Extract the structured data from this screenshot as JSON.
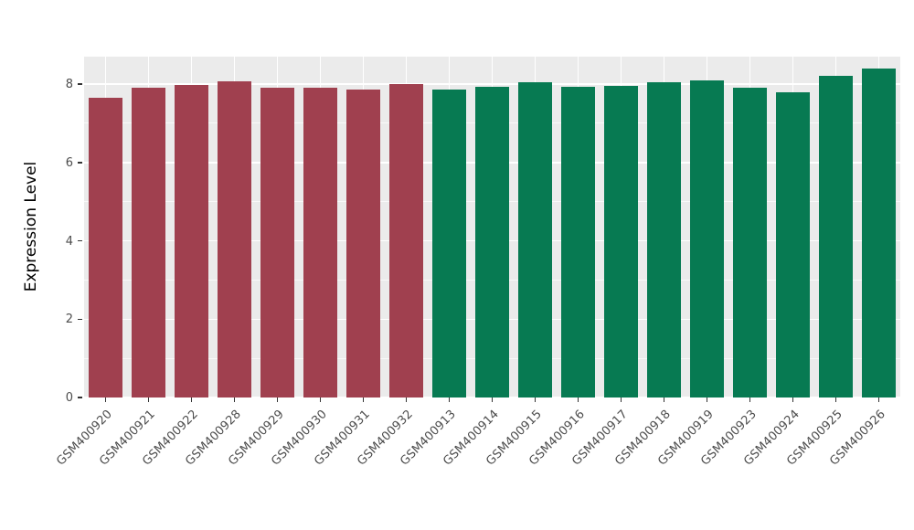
{
  "chart_data": {
    "type": "bar",
    "title": "",
    "xlabel": "",
    "ylabel": "Expression Level",
    "ylim": [
      0,
      8.7
    ],
    "yticks": [
      0,
      2,
      4,
      6,
      8
    ],
    "yticks_minor": [
      1,
      3,
      5,
      7
    ],
    "grid": "on",
    "legend": "none",
    "categories": [
      "GSM400920",
      "GSM400921",
      "GSM400922",
      "GSM400928",
      "GSM400929",
      "GSM400930",
      "GSM400931",
      "GSM400932",
      "GSM400913",
      "GSM400914",
      "GSM400915",
      "GSM400916",
      "GSM400917",
      "GSM400918",
      "GSM400919",
      "GSM400923",
      "GSM400924",
      "GSM400925",
      "GSM400926"
    ],
    "values": [
      7.65,
      7.9,
      7.97,
      8.07,
      7.9,
      7.9,
      7.85,
      8.0,
      7.85,
      7.92,
      8.05,
      7.92,
      7.95,
      8.05,
      8.1,
      7.9,
      7.78,
      8.2,
      8.4
    ],
    "groups": [
      "red",
      "red",
      "red",
      "red",
      "red",
      "red",
      "red",
      "red",
      "green",
      "green",
      "green",
      "green",
      "green",
      "green",
      "green",
      "green",
      "green",
      "green",
      "green"
    ]
  },
  "style": {
    "panel_background": "#ebebeb",
    "grid_color": "#ffffff",
    "tick_label_color": "#4d4d4d",
    "axis_title_color": "#000000",
    "group_colors": {
      "red": "#a0404f",
      "green": "#077a52"
    }
  }
}
